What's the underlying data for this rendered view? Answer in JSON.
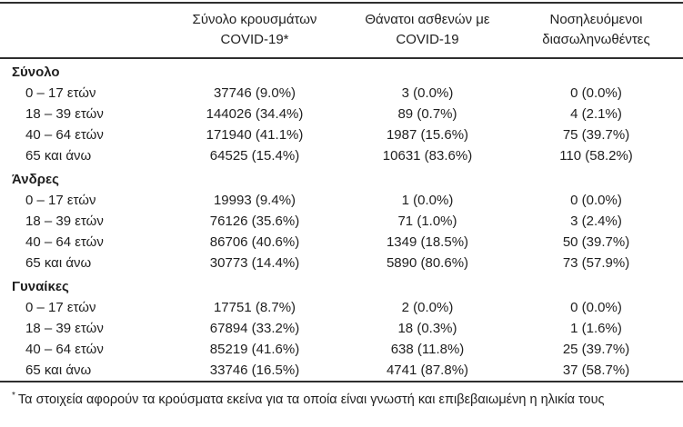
{
  "table": {
    "headers": {
      "cases": {
        "line1": "Σύνολο κρουσμάτων",
        "line2": "COVID-19*"
      },
      "deaths": {
        "line1": "Θάνατοι ασθενών με",
        "line2": "COVID-19"
      },
      "intubated": {
        "line1": "Νοσηλευόμενοι",
        "line2": "διασωληνωθέντες"
      }
    },
    "sections": [
      {
        "label": "Σύνολο",
        "rows": [
          {
            "label": "0 – 17 ετών",
            "cases": "37746 (9.0%)",
            "deaths": "3 (0.0%)",
            "intubated": "0 (0.0%)"
          },
          {
            "label": "18 – 39 ετών",
            "cases": "144026 (34.4%)",
            "deaths": "89 (0.7%)",
            "intubated": "4 (2.1%)"
          },
          {
            "label": "40 – 64 ετών",
            "cases": "171940 (41.1%)",
            "deaths": "1987 (15.6%)",
            "intubated": "75 (39.7%)"
          },
          {
            "label": "65 και άνω",
            "cases": "64525 (15.4%)",
            "deaths": "10631 (83.6%)",
            "intubated": "110 (58.2%)"
          }
        ]
      },
      {
        "label": "Άνδρες",
        "rows": [
          {
            "label": "0 – 17 ετών",
            "cases": "19993 (9.4%)",
            "deaths": "1 (0.0%)",
            "intubated": "0 (0.0%)"
          },
          {
            "label": "18 – 39 ετών",
            "cases": "76126 (35.6%)",
            "deaths": "71 (1.0%)",
            "intubated": "3 (2.4%)"
          },
          {
            "label": "40 – 64 ετών",
            "cases": "86706 (40.6%)",
            "deaths": "1349 (18.5%)",
            "intubated": "50 (39.7%)"
          },
          {
            "label": "65 και άνω",
            "cases": "30773 (14.4%)",
            "deaths": "5890 (80.6%)",
            "intubated": "73 (57.9%)"
          }
        ]
      },
      {
        "label": "Γυναίκες",
        "rows": [
          {
            "label": "0 – 17 ετών",
            "cases": "17751 (8.7%)",
            "deaths": "2 (0.0%)",
            "intubated": "0 (0.0%)"
          },
          {
            "label": "18 – 39 ετών",
            "cases": "67894 (33.2%)",
            "deaths": "18 (0.3%)",
            "intubated": "1 (1.6%)"
          },
          {
            "label": "40 – 64 ετών",
            "cases": "85219 (41.6%)",
            "deaths": "638 (11.8%)",
            "intubated": "25 (39.7%)"
          },
          {
            "label": "65 και άνω",
            "cases": "33746 (16.5%)",
            "deaths": "4741 (87.8%)",
            "intubated": "37 (58.7%)"
          }
        ]
      }
    ],
    "footnote": {
      "marker": "*",
      "text": "Τα στοιχεία αφορούν τα κρούσματα εκείνα για τα οποία είναι γνωστή και επιβεβαιωμένη η ηλικία τους"
    }
  },
  "colors": {
    "text": "#1f1f1f",
    "border": "#2e2e2e",
    "background": "#ffffff"
  }
}
